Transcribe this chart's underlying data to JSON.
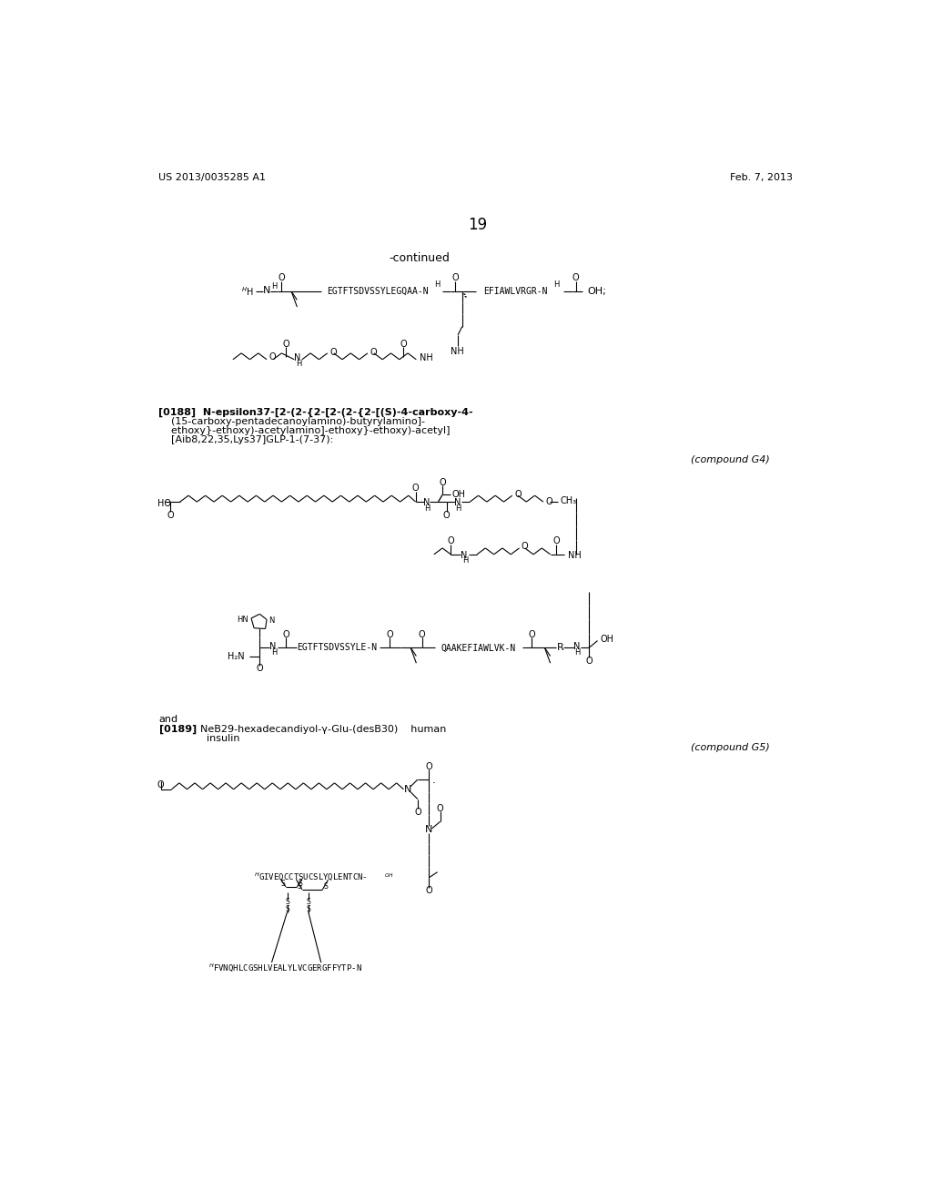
{
  "page_number": "19",
  "patent_number": "US 2013/0035285 A1",
  "patent_date": "Feb. 7, 2013",
  "background_color": "#ffffff",
  "text_color": "#000000",
  "continued_label": "-continued",
  "compound_g4_label": "(compound G4)",
  "compound_g5_label": "(compound G5)"
}
